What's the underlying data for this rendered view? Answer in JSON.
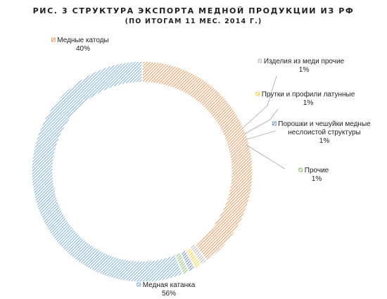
{
  "chart_data": {
    "type": "pie",
    "title": "РИС. 3  СТРУКТУРА ЭКСПОРТА МЕДНОЙ ПРОДУКЦИИ ИЗ РФ",
    "subtitle": "(ПО ИТОГАМ 11 МЕС. 2014 Г.)",
    "hole": "donut",
    "slices": [
      {
        "name": "Медные катоды",
        "label_lines": [
          "Медные катоды"
        ],
        "value": 40,
        "value_label": "40%",
        "color": "#ed7d31"
      },
      {
        "name": "Изделия из меди прочие",
        "label_lines": [
          "Изделия из меди прочие"
        ],
        "value": 1,
        "value_label": "1%",
        "color": "#a5a5a5"
      },
      {
        "name": "Прутки и профили латунные",
        "label_lines": [
          "Прутки и профили латунные"
        ],
        "value": 1,
        "value_label": "1%",
        "color": "#ffc000"
      },
      {
        "name": "Порошки и чешуйки медные неслоистой структуры",
        "label_lines": [
          "Порошки и чешуйки медные",
          "неслоистой структуры"
        ],
        "value": 1,
        "value_label": "1%",
        "color": "#4472c4"
      },
      {
        "name": "Прочие",
        "label_lines": [
          "Прочие"
        ],
        "value": 1,
        "value_label": "1%",
        "color": "#70ad47"
      },
      {
        "name": "Медная катанка",
        "label_lines": [
          "Медная катанка"
        ],
        "value": 56,
        "value_label": "56%",
        "color": "#5b9bd5"
      }
    ]
  }
}
